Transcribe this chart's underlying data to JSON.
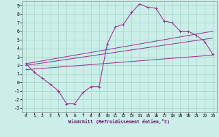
{
  "xlabel": "Windchill (Refroidissement éolien,°C)",
  "background_color": "#cceee8",
  "grid_color": "#aaddcc",
  "line_color": "#993399",
  "xlim": [
    -0.5,
    23.5
  ],
  "ylim": [
    -3.5,
    9.5
  ],
  "xticks": [
    0,
    1,
    2,
    3,
    4,
    5,
    6,
    7,
    8,
    9,
    10,
    11,
    12,
    13,
    14,
    15,
    16,
    17,
    18,
    19,
    20,
    21,
    22,
    23
  ],
  "yticks": [
    -3,
    -2,
    -1,
    0,
    1,
    2,
    3,
    4,
    5,
    6,
    7,
    8,
    9
  ],
  "series1_x": [
    0,
    1,
    2,
    3,
    4,
    5,
    6,
    7,
    8,
    9,
    10,
    11,
    12,
    13,
    14,
    15,
    16,
    17,
    18,
    19,
    20,
    21,
    22,
    23
  ],
  "series1_y": [
    2.2,
    1.2,
    0.5,
    -0.2,
    -1.0,
    -2.5,
    -2.5,
    -1.2,
    -0.5,
    -0.5,
    4.5,
    6.5,
    6.8,
    8.2,
    9.2,
    8.8,
    8.7,
    7.2,
    7.0,
    6.0,
    6.0,
    5.5,
    4.8,
    3.3
  ],
  "series2_x": [
    0,
    23
  ],
  "series2_y": [
    1.5,
    3.2
  ],
  "series3_x": [
    0,
    23
  ],
  "series3_y": [
    2.0,
    5.2
  ],
  "series4_x": [
    0,
    23
  ],
  "series4_y": [
    2.2,
    6.0
  ]
}
